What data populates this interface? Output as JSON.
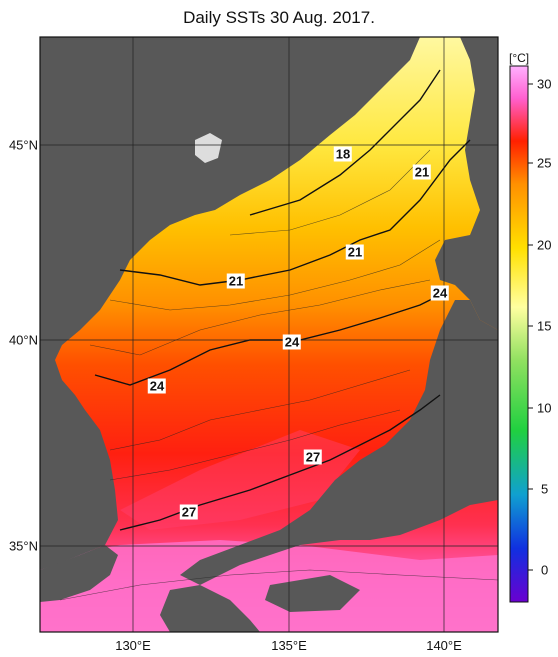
{
  "title": "Daily SSTs 30 Aug. 2017.",
  "colorbar": {
    "unit": "[°C]",
    "ticks": [
      "30",
      "25",
      "20",
      "15",
      "10",
      "5",
      "0"
    ],
    "range": [
      -2,
      32
    ],
    "stops": [
      "#6a00d0",
      "#1030e0",
      "#10a0d0",
      "#20d040",
      "#90e060",
      "#ffffa0",
      "#ffe000",
      "#ff9000",
      "#ff2000",
      "#ff60d0",
      "#ffb0ff"
    ]
  },
  "axes": {
    "lat_labels": [
      "45°N",
      "40°N",
      "35°N"
    ],
    "lon_labels": [
      "130°E",
      "135°E",
      "140°E"
    ]
  },
  "isotherm_labels": [
    "18",
    "21",
    "21",
    "21",
    "24",
    "24",
    "24",
    "27",
    "27"
  ],
  "colors": {
    "land": "#585858",
    "ocean_warm": "#ff2010",
    "ocean_hot": "#ff70c8",
    "ocean_cool": "#ffe000"
  }
}
